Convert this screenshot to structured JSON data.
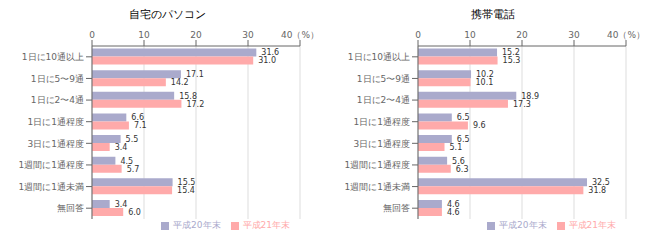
{
  "chart_data": [
    {
      "type": "bar",
      "orientation": "horizontal",
      "title": "自宅のパソコン",
      "categories": [
        "1日に10通以上",
        "1日に5〜9通",
        "1日に2〜4通",
        "1日に1通程度",
        "3日に1通程度",
        "1週間に1通程度",
        "1週間に1通未満",
        "無回答"
      ],
      "series": [
        {
          "name": "平成20年末",
          "color": "#aaaacc",
          "values": [
            31.6,
            17.1,
            15.8,
            6.6,
            5.5,
            4.5,
            15.5,
            3.4
          ],
          "value_labels": [
            "31.6",
            "17.1",
            "15.8",
            "6.6",
            "5.5",
            "4.5",
            "15.5",
            "3.4"
          ]
        },
        {
          "name": "平成21年末",
          "color": "#ffaaaa",
          "values": [
            31.0,
            14.2,
            17.2,
            7.1,
            3.4,
            5.7,
            15.4,
            6.0
          ],
          "value_labels": [
            "31.0",
            "14.2",
            "17.2",
            "7.1",
            "3.4",
            "5.7",
            "15.4",
            "6.0"
          ]
        }
      ],
      "xlim": [
        0,
        40
      ],
      "xticks": [
        0,
        10,
        20,
        30,
        {
          "value": 40,
          "label": "40（%）"
        }
      ],
      "grid": true,
      "legend": "lower right",
      "data_labels": true
    },
    {
      "type": "bar",
      "orientation": "horizontal",
      "title": "携帯電話",
      "categories": [
        "1日に10通以上",
        "1日に5〜9通",
        "1日に2〜4通",
        "1日に1通程度",
        "3日に1通程度",
        "1週間に1通程度",
        "1週間に1通未満",
        "無回答"
      ],
      "series": [
        {
          "name": "平成20年末",
          "color": "#aaaacc",
          "values": [
            15.2,
            10.2,
            18.9,
            6.5,
            6.5,
            5.6,
            32.5,
            4.6
          ],
          "value_labels": [
            "15.2",
            "10.2",
            "18.9",
            "6.5",
            "6.5",
            "5.6",
            "32.5",
            "4.6"
          ]
        },
        {
          "name": "平成21年末",
          "color": "#ffaaaa",
          "values": [
            15.3,
            10.1,
            17.3,
            9.6,
            5.1,
            6.3,
            31.8,
            4.6
          ],
          "value_labels": [
            "15.3",
            "10.1",
            "17.3",
            "9.6",
            "5.1",
            "6.3",
            "31.8",
            "4.6"
          ]
        }
      ],
      "xlim": [
        0,
        40
      ],
      "xticks": [
        0,
        10,
        20,
        30,
        {
          "value": 40,
          "label": "40（%）"
        }
      ],
      "grid": true,
      "legend": "lower right",
      "data_labels": true
    }
  ]
}
